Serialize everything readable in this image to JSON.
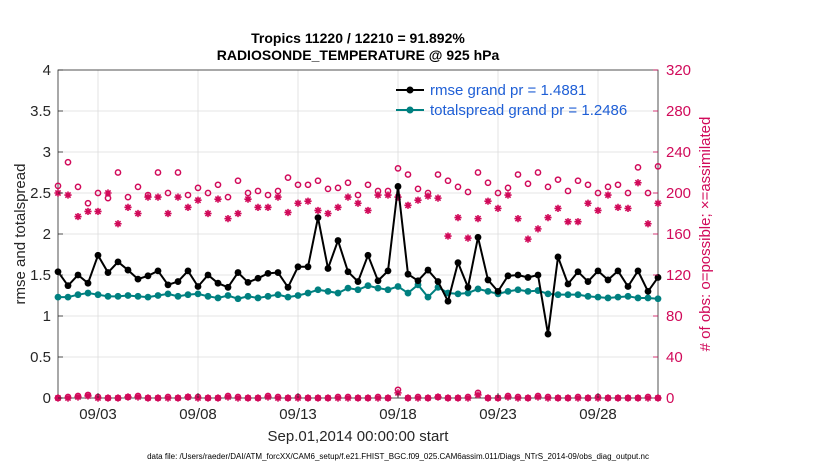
{
  "chart_data": {
    "type": "line",
    "title": "Tropics 11220 / 12210 = 91.892%",
    "subtitle": "RADIOSONDE_TEMPERATURE @ 925 hPa",
    "xlabel": "Sep.01,2014 00:00:00 start",
    "ylabel_left": "rmse and totalspread",
    "ylabel_right": "# of obs: o=possible; ×=assimilated",
    "footer": "data file: /Users/raeder/DAI/ATM_forcXX/CAM6_setup/f.e21.FHIST_BGC.f09_025.CAM6assim.011/Diags_NTrS_2014-09/obs_diag_output.nc",
    "xlim": [
      1.0,
      31.0
    ],
    "ylim_left": [
      0,
      4
    ],
    "ylim_right": [
      0,
      320
    ],
    "x_ticks": [
      3,
      8,
      13,
      18,
      23,
      28
    ],
    "x_tick_labels": [
      "09/03",
      "09/08",
      "09/13",
      "09/18",
      "09/23",
      "09/28"
    ],
    "y_left_ticks": [
      0,
      0.5,
      1,
      1.5,
      2,
      2.5,
      3,
      3.5,
      4
    ],
    "y_left_tick_labels": [
      "0",
      "0.5",
      "1",
      "1.5",
      "2",
      "2.5",
      "3",
      "3.5",
      "4"
    ],
    "y_right_ticks": [
      0,
      40,
      80,
      120,
      160,
      200,
      240,
      280,
      320
    ],
    "y_right_tick_labels": [
      "0",
      "40",
      "80",
      "120",
      "160",
      "200",
      "240",
      "280",
      "320"
    ],
    "grid": true,
    "legend_position": "top-right",
    "x": [
      1.0,
      1.5,
      2.0,
      2.5,
      3.0,
      3.5,
      4.0,
      4.5,
      5.0,
      5.5,
      6.0,
      6.5,
      7.0,
      7.5,
      8.0,
      8.5,
      9.0,
      9.5,
      10.0,
      10.5,
      11.0,
      11.5,
      12.0,
      12.5,
      13.0,
      13.5,
      14.0,
      14.5,
      15.0,
      15.5,
      16.0,
      16.5,
      17.0,
      17.5,
      18.0,
      18.5,
      19.0,
      19.5,
      20.0,
      20.5,
      21.0,
      21.5,
      22.0,
      22.5,
      23.0,
      23.5,
      24.0,
      24.5,
      25.0,
      25.5,
      26.0,
      26.5,
      27.0,
      27.5,
      28.0,
      28.5,
      29.0,
      29.5,
      30.0,
      30.5,
      31.0
    ],
    "series": [
      {
        "name": "rmse grand pr = 1.4881",
        "color": "#000000",
        "axis": "left",
        "values": [
          1.54,
          1.37,
          1.5,
          1.4,
          1.74,
          1.53,
          1.66,
          1.56,
          1.45,
          1.49,
          1.55,
          1.38,
          1.42,
          1.55,
          1.36,
          1.5,
          1.4,
          1.35,
          1.53,
          1.41,
          1.46,
          1.52,
          1.53,
          1.35,
          1.6,
          1.6,
          2.2,
          1.58,
          1.92,
          1.54,
          1.42,
          1.74,
          1.43,
          1.55,
          2.58,
          1.51,
          1.43,
          1.56,
          1.42,
          1.18,
          1.65,
          1.35,
          1.96,
          1.44,
          1.3,
          1.49,
          1.5,
          1.47,
          1.5,
          0.78,
          1.72,
          1.39,
          1.54,
          1.42,
          1.55,
          1.44,
          1.55,
          1.36,
          1.55,
          1.3,
          1.47
        ]
      },
      {
        "name": "totalspread grand pr = 1.2486",
        "color": "#008080",
        "axis": "left",
        "values": [
          1.23,
          1.23,
          1.26,
          1.28,
          1.26,
          1.24,
          1.24,
          1.25,
          1.24,
          1.23,
          1.25,
          1.27,
          1.24,
          1.26,
          1.27,
          1.24,
          1.22,
          1.25,
          1.21,
          1.24,
          1.22,
          1.24,
          1.26,
          1.23,
          1.25,
          1.28,
          1.32,
          1.3,
          1.28,
          1.34,
          1.32,
          1.37,
          1.34,
          1.32,
          1.36,
          1.28,
          1.38,
          1.23,
          1.35,
          1.28,
          1.27,
          1.28,
          1.33,
          1.3,
          1.27,
          1.3,
          1.32,
          1.3,
          1.31,
          1.27,
          1.26,
          1.26,
          1.26,
          1.24,
          1.23,
          1.22,
          1.23,
          1.24,
          1.22,
          1.22,
          1.21
        ]
      }
    ],
    "obs_possible": {
      "name": "possible (o)",
      "color": "#d10a5a",
      "axis": "right",
      "values": [
        207,
        230,
        206,
        190,
        200,
        195,
        220,
        196,
        206,
        198,
        220,
        200,
        220,
        198,
        205,
        200,
        208,
        196,
        212,
        200,
        202,
        198,
        202,
        215,
        208,
        208,
        212,
        204,
        205,
        210,
        198,
        208,
        202,
        202,
        224,
        218,
        204,
        200,
        218,
        212,
        206,
        201,
        220,
        210,
        200,
        205,
        218,
        209,
        220,
        206,
        213,
        202,
        212,
        208,
        200,
        206,
        208,
        200,
        225,
        200,
        226
      ]
    },
    "obs_possible_low": {
      "name": "possible (o) near zero",
      "color": "#d10a5a",
      "axis": "right",
      "values": [
        0,
        1,
        2,
        3,
        1,
        0,
        0,
        1,
        2,
        0,
        0,
        1,
        0,
        1,
        1,
        0,
        0,
        2,
        1,
        0,
        0,
        2,
        1,
        0,
        1,
        0,
        0,
        0,
        1,
        1,
        0,
        0,
        1,
        0,
        8,
        0,
        1,
        0,
        1,
        0,
        0,
        1,
        5,
        0,
        0,
        2,
        1,
        0,
        2,
        1,
        0,
        0,
        1,
        0,
        1,
        0,
        0,
        0,
        0,
        1,
        0
      ]
    },
    "obs_assimilated": {
      "name": "assimilated (×)",
      "color": "#d10a5a",
      "axis": "right",
      "values": [
        200,
        198,
        177,
        182,
        182,
        200,
        170,
        186,
        180,
        196,
        196,
        180,
        196,
        186,
        193,
        180,
        194,
        175,
        180,
        194,
        186,
        186,
        196,
        181,
        190,
        192,
        183,
        180,
        186,
        196,
        190,
        183,
        198,
        198,
        196,
        188,
        193,
        197,
        195,
        158,
        176,
        156,
        175,
        192,
        185,
        198,
        175,
        155,
        165,
        176,
        185,
        172,
        172,
        190,
        183,
        198,
        186,
        185,
        210,
        170,
        190
      ]
    },
    "obs_assimilated_low": {
      "name": "assimilated (×) near zero",
      "color": "#d10a5a",
      "axis": "right",
      "values": [
        0,
        0,
        1,
        2,
        0,
        0,
        0,
        1,
        1,
        0,
        0,
        0,
        0,
        1,
        0,
        0,
        0,
        1,
        0,
        0,
        0,
        1,
        0,
        0,
        0,
        0,
        0,
        0,
        0,
        0,
        0,
        0,
        0,
        0,
        5,
        0,
        0,
        0,
        1,
        0,
        0,
        0,
        3,
        0,
        0,
        1,
        0,
        0,
        1,
        0,
        0,
        0,
        0,
        0,
        0,
        0,
        0,
        0,
        0,
        0,
        0
      ]
    }
  }
}
